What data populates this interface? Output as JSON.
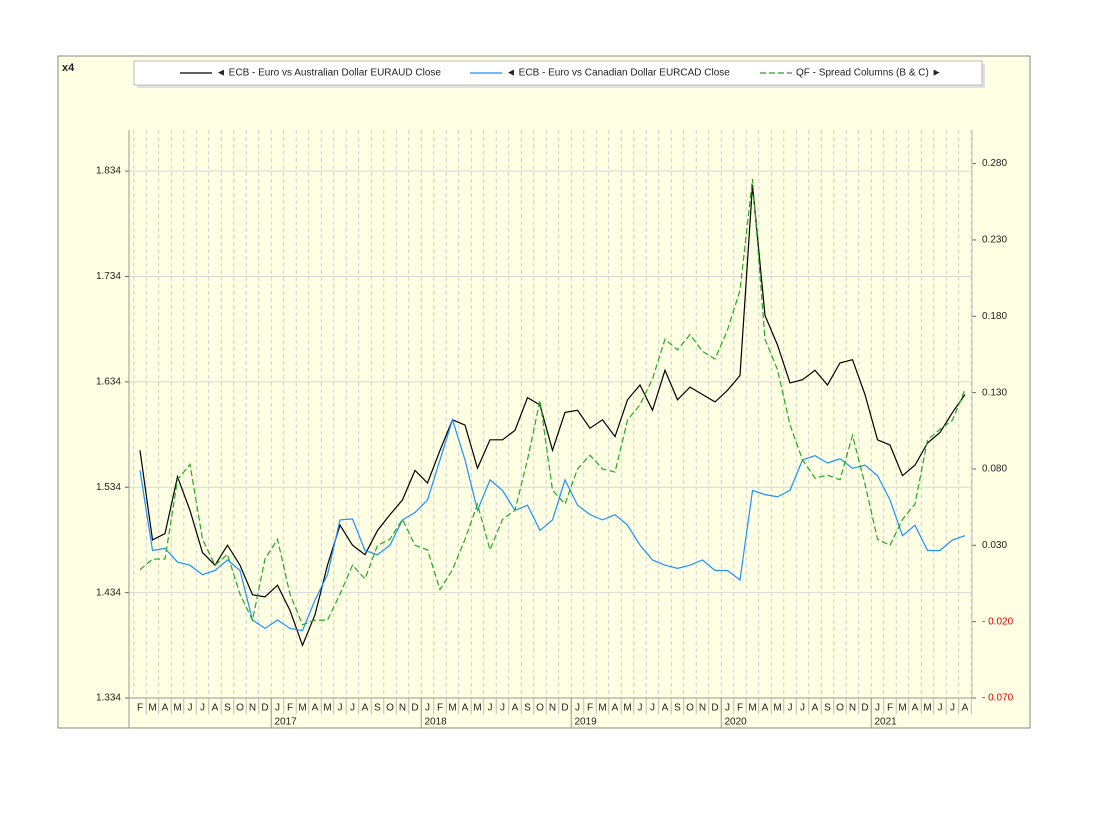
{
  "chart_data": {
    "type": "line",
    "corner_label": "x4",
    "categories": [
      "F",
      "M",
      "A",
      "M",
      "J",
      "J",
      "A",
      "S",
      "O",
      "N",
      "D",
      "J",
      "F",
      "M",
      "A",
      "M",
      "J",
      "J",
      "A",
      "S",
      "O",
      "N",
      "D",
      "J",
      "F",
      "M",
      "A",
      "M",
      "J",
      "J",
      "A",
      "S",
      "O",
      "N",
      "D",
      "J",
      "F",
      "M",
      "A",
      "M",
      "J",
      "J",
      "A",
      "S",
      "O",
      "N",
      "D",
      "J",
      "F",
      "M",
      "A",
      "M",
      "J",
      "J",
      "A",
      "S",
      "O",
      "N",
      "D",
      "J",
      "F",
      "M",
      "A",
      "M",
      "J",
      "J",
      "A"
    ],
    "year_labels": [
      null,
      null,
      null,
      null,
      null,
      null,
      null,
      null,
      null,
      null,
      null,
      "2017",
      null,
      null,
      null,
      null,
      null,
      null,
      null,
      null,
      null,
      null,
      null,
      "2018",
      null,
      null,
      null,
      null,
      null,
      null,
      null,
      null,
      null,
      null,
      null,
      "2019",
      null,
      null,
      null,
      null,
      null,
      null,
      null,
      null,
      null,
      null,
      null,
      "2020",
      null,
      null,
      null,
      null,
      null,
      null,
      null,
      null,
      null,
      null,
      null,
      "2021",
      null,
      null,
      null,
      null,
      null,
      null,
      null
    ],
    "series": [
      {
        "name": "◄ ECB - Euro  vs Australian Dollar EURAUD Close",
        "color": "#000000",
        "axis": "y",
        "line_style": "solid",
        "values": [
          1.569,
          1.484,
          1.49,
          1.544,
          1.512,
          1.472,
          1.46,
          1.479,
          1.46,
          1.432,
          1.43,
          1.441,
          1.417,
          1.384,
          1.413,
          1.46,
          1.498,
          1.479,
          1.47,
          1.493,
          1.508,
          1.522,
          1.55,
          1.538,
          1.569,
          1.598,
          1.593,
          1.552,
          1.579,
          1.579,
          1.588,
          1.619,
          1.612,
          1.569,
          1.605,
          1.607,
          1.59,
          1.598,
          1.582,
          1.617,
          1.631,
          1.607,
          1.645,
          1.617,
          1.629,
          1.622,
          1.615,
          1.626,
          1.64,
          1.821,
          1.697,
          1.669,
          1.633,
          1.636,
          1.645,
          1.631,
          1.652,
          1.655,
          1.622,
          1.579,
          1.574,
          1.545,
          1.555,
          1.576,
          1.586,
          1.605,
          1.622
        ]
      },
      {
        "name": "◄ ECB - Euro  vs Canadian Dollar EURCAD Close",
        "color": "#1e90ff",
        "axis": "y",
        "line_style": "solid",
        "values": [
          1.55,
          1.474,
          1.476,
          1.463,
          1.46,
          1.451,
          1.455,
          1.465,
          1.455,
          1.408,
          1.4,
          1.408,
          1.4,
          1.398,
          1.427,
          1.451,
          1.503,
          1.504,
          1.474,
          1.47,
          1.479,
          1.503,
          1.51,
          1.522,
          1.56,
          1.598,
          1.56,
          1.512,
          1.541,
          1.531,
          1.512,
          1.517,
          1.493,
          1.503,
          1.541,
          1.517,
          1.508,
          1.503,
          1.508,
          1.498,
          1.479,
          1.465,
          1.46,
          1.457,
          1.46,
          1.465,
          1.455,
          1.455,
          1.446,
          1.531,
          1.527,
          1.525,
          1.531,
          1.56,
          1.564,
          1.557,
          1.561,
          1.552,
          1.555,
          1.545,
          1.522,
          1.488,
          1.498,
          1.474,
          1.474,
          1.484,
          1.488
        ]
      },
      {
        "name": "QF - Spread  Columns  (B & C) ►",
        "color": "#22aa22",
        "axis": "y2",
        "line_style": "dashed",
        "values": [
          0.014,
          0.021,
          0.021,
          0.073,
          0.083,
          0.034,
          0.017,
          0.024,
          -0.002,
          -0.019,
          0.021,
          0.034,
          -0.002,
          -0.022,
          -0.019,
          -0.019,
          -0.002,
          0.017,
          0.008,
          0.03,
          0.034,
          0.047,
          0.03,
          0.027,
          0.001,
          0.014,
          0.034,
          0.057,
          0.027,
          0.047,
          0.053,
          0.086,
          0.125,
          0.066,
          0.057,
          0.08,
          0.089,
          0.08,
          0.078,
          0.112,
          0.122,
          0.139,
          0.165,
          0.158,
          0.168,
          0.157,
          0.152,
          0.171,
          0.197,
          0.27,
          0.165,
          0.145,
          0.109,
          0.086,
          0.074,
          0.076,
          0.073,
          0.102,
          0.07,
          0.034,
          0.03,
          0.047,
          0.057,
          0.099,
          0.106,
          0.112,
          0.132
        ]
      }
    ],
    "ylim": [
      1.334,
      1.873
    ],
    "yticks": [
      1.334,
      1.434,
      1.534,
      1.634,
      1.734,
      1.834
    ],
    "y2lim": [
      -0.07,
      0.302
    ],
    "y2ticks": [
      {
        "value": -0.07,
        "label": "- 0.070"
      },
      {
        "value": -0.02,
        "label": "- 0.020"
      },
      {
        "value": 0.03,
        "label": "0.030"
      },
      {
        "value": 0.08,
        "label": "0.080"
      },
      {
        "value": 0.13,
        "label": "0.130"
      },
      {
        "value": 0.18,
        "label": "0.180"
      },
      {
        "value": 0.23,
        "label": "0.230"
      },
      {
        "value": 0.28,
        "label": "0.280"
      }
    ],
    "negative_tick_color": "#e00000",
    "grid": true
  }
}
